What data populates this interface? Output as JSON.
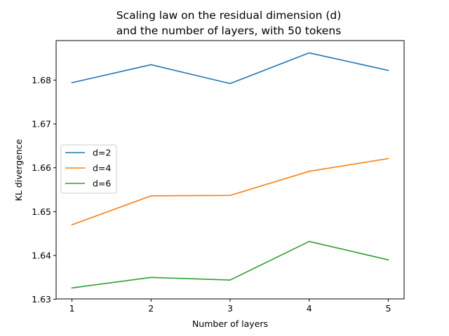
{
  "chart_data": {
    "type": "line",
    "title": [
      "Scaling law on the residual dimension (d)",
      "and the number of layers, with 50 tokens"
    ],
    "xlabel": "Number of layers",
    "ylabel": "KL divergence",
    "x": [
      1,
      2,
      3,
      4,
      5
    ],
    "xticks": [
      "1",
      "2",
      "3",
      "4",
      "5"
    ],
    "yticks": [
      "1.63",
      "1.64",
      "1.65",
      "1.66",
      "1.67",
      "1.68"
    ],
    "ylim": [
      1.6301,
      1.689
    ],
    "xlim": [
      0.8,
      5.2
    ],
    "grid": false,
    "legend_position": "center-left",
    "series": [
      {
        "name": "d=2",
        "color": "#1f77b4",
        "values": [
          1.6794,
          1.6835,
          1.6792,
          1.6862,
          1.6822
        ]
      },
      {
        "name": "d=4",
        "color": "#ff7f0e",
        "values": [
          1.647,
          1.6536,
          1.6537,
          1.6592,
          1.6621
        ]
      },
      {
        "name": "d=6",
        "color": "#2ca02c",
        "values": [
          1.6326,
          1.635,
          1.6344,
          1.6432,
          1.639
        ]
      }
    ]
  }
}
